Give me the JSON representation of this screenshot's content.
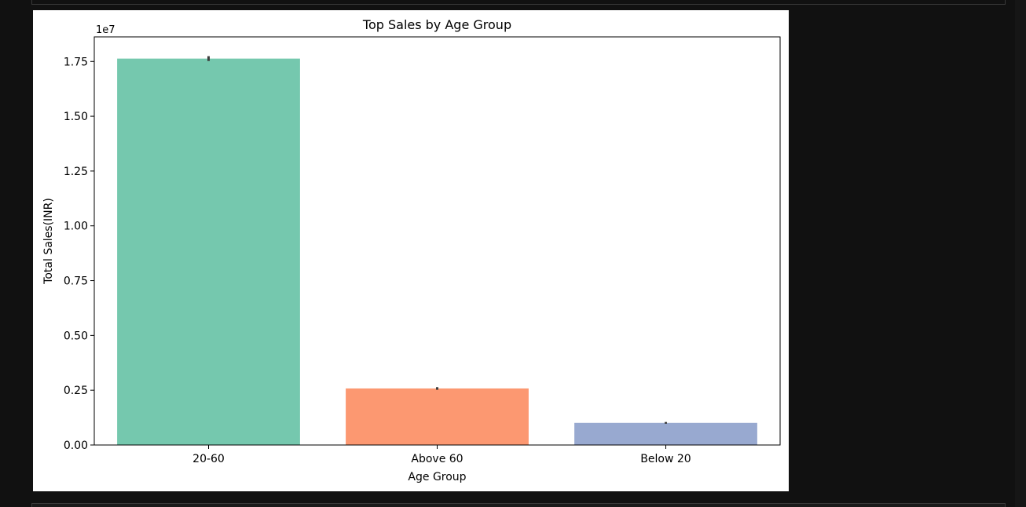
{
  "page": {
    "background": "#111111",
    "cell_border": "#3a3a3a"
  },
  "chart_data": {
    "type": "bar",
    "title": "Top Sales by Age Group",
    "xlabel": "Age Group",
    "ylabel": "Total Sales(INR)",
    "offset_text": "1e7",
    "scale": 10000000,
    "categories": [
      "20-60",
      "Above 60",
      "Below 20"
    ],
    "values": [
      17630000,
      2580000,
      1010000
    ],
    "error_bars": [
      [
        17520000,
        17740000
      ],
      [
        2520000,
        2640000
      ],
      [
        970000,
        1050000
      ]
    ],
    "colors": [
      "#66c2a5",
      "#fc8d62",
      "#8da0cb"
    ],
    "ylim": [
      0,
      18620000
    ],
    "yticks": [
      0,
      2500000,
      5000000,
      7500000,
      10000000,
      12500000,
      15000000,
      17500000
    ],
    "ytick_labels": [
      "0.00",
      "0.25",
      "0.50",
      "0.75",
      "1.00",
      "1.25",
      "1.50",
      "1.75"
    ],
    "grid": false,
    "legend": "none"
  }
}
